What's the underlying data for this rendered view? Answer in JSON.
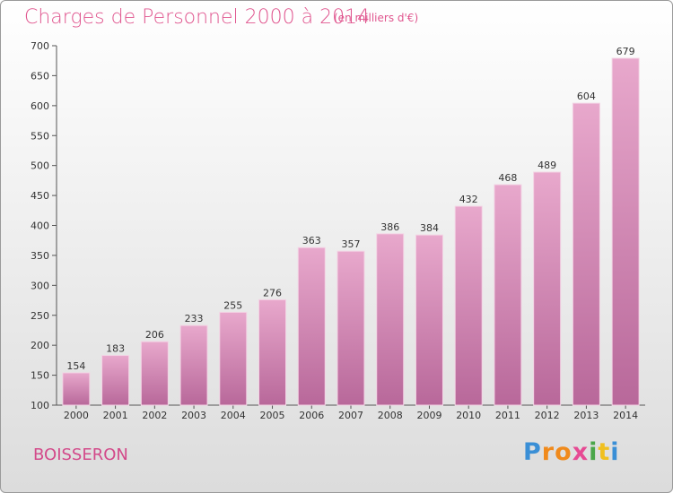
{
  "header": {
    "title": "Charges de Personnel 2000 à 2014",
    "subtitle": "(en milliers d'€)"
  },
  "footer": {
    "commune": "BOISSERON",
    "logo": [
      "P",
      "r",
      "o",
      "x",
      "i",
      "t",
      "i"
    ]
  },
  "colors": {
    "title": "#e0568f",
    "bar_top": "#e8a8cc",
    "bar_bottom": "#b8689a",
    "logo": [
      "#3a8fd6",
      "#f08a1c",
      "#f08a1c",
      "#e64a93",
      "#4aa64a",
      "#f0c020",
      "#3a8fd6"
    ]
  },
  "chart_data": {
    "type": "bar",
    "categories": [
      "2000",
      "2001",
      "2002",
      "2003",
      "2004",
      "2005",
      "2006",
      "2007",
      "2008",
      "2009",
      "2010",
      "2011",
      "2012",
      "2013",
      "2014"
    ],
    "values": [
      154,
      183,
      206,
      233,
      255,
      276,
      363,
      357,
      386,
      384,
      432,
      468,
      489,
      604,
      679
    ],
    "data_labels": [
      "154",
      "183",
      "206",
      "233",
      "255",
      "276",
      "363",
      "357",
      "386",
      "384",
      "432",
      "468",
      "489",
      "604",
      "679"
    ],
    "ylim": [
      100,
      700
    ],
    "yticks": [
      "100",
      "150",
      "200",
      "250",
      "300",
      "350",
      "400",
      "450",
      "500",
      "550",
      "600",
      "650",
      "700"
    ],
    "grid": false
  }
}
